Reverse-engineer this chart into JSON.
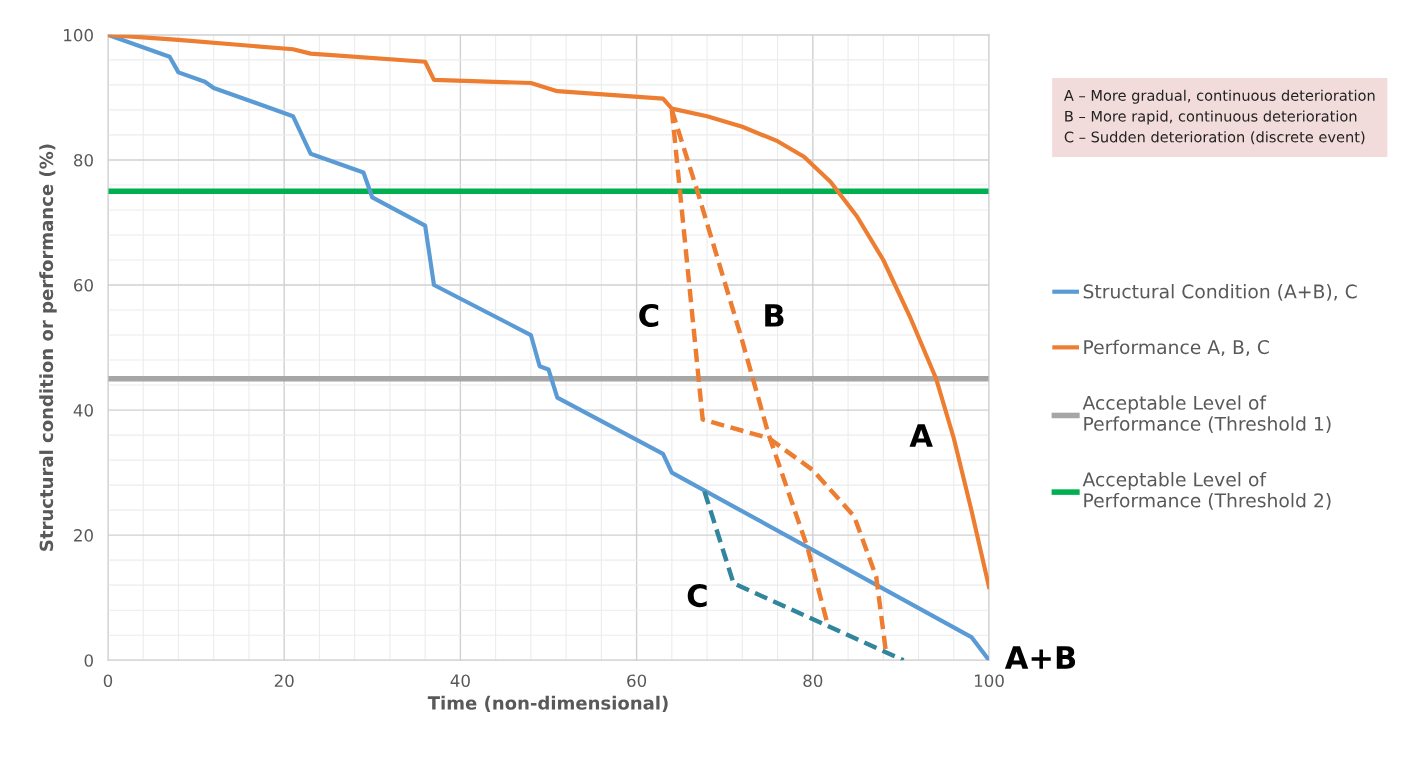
{
  "chart_data": {
    "type": "line",
    "xlabel": "Time (non-dimensional)",
    "ylabel": "Structural condition or performance (%)",
    "xlim": [
      0,
      100
    ],
    "ylim": [
      0,
      100
    ],
    "xticks": [
      0,
      20,
      40,
      60,
      80,
      100
    ],
    "yticks": [
      0,
      20,
      40,
      60,
      80,
      100
    ],
    "grid": true,
    "legend": "right",
    "line_style": "solid",
    "marker": "none",
    "series": [
      {
        "name": "Structural Condition (A+B), C",
        "color": "#5b9bd5",
        "x": [
          0,
          7,
          8,
          11,
          12,
          21,
          23,
          29,
          30,
          36,
          37,
          48,
          49,
          50,
          51,
          63,
          64,
          98,
          100
        ],
        "values": [
          100,
          96.5,
          94,
          92.5,
          91.5,
          87,
          81,
          78,
          74,
          69.5,
          60,
          52,
          47,
          46.5,
          42,
          33,
          30,
          3.7,
          0
        ]
      },
      {
        "name": "Performance A, B, C",
        "color": "#ed7d31",
        "x": [
          0,
          8,
          21,
          23,
          36,
          37,
          48,
          51,
          63,
          64,
          68,
          72,
          76,
          79,
          82,
          85,
          88,
          91,
          94,
          96,
          98,
          100
        ],
        "values": [
          100,
          99.2,
          97.7,
          97,
          95.7,
          92.8,
          92.3,
          91,
          89.8,
          88.2,
          87,
          85.3,
          83,
          80.5,
          76.5,
          71,
          64,
          55,
          45,
          35.5,
          24,
          11.7
        ]
      },
      {
        "color": "#ed7d31",
        "line_style": "dashed",
        "x": [
          64,
          66.9,
          71.8,
          75,
          79.4,
          81.7
        ],
        "values": [
          88,
          75,
          52,
          36,
          18,
          5.6
        ]
      },
      {
        "color": "#ed7d31",
        "line_style": "dashed",
        "x": [
          64,
          67.5,
          75,
          80,
          84.7,
          87.2,
          88.3
        ],
        "values": [
          88,
          38.5,
          35.5,
          30.4,
          23,
          13.3,
          1.3
        ]
      },
      {
        "color": "#31859c",
        "line_style": "dashed",
        "x": [
          67.7,
          71,
          90.3
        ],
        "values": [
          27,
          12.3,
          0
        ]
      }
    ],
    "ref_lines": [
      {
        "axis": "y",
        "value": 45,
        "label": "Acceptable Level of Performance (Threshold 1)",
        "color": "#a6a6a6"
      },
      {
        "axis": "y",
        "value": 75,
        "label": "Acceptable Level of Performance (Threshold 2)",
        "color": "#00b050"
      }
    ],
    "annotations": [
      "A – More gradual, continuous deterioration",
      "B – More rapid, continuous deterioration",
      "C – Sudden deterioration (discrete event)",
      "C",
      "B",
      "A",
      "C",
      "A+B"
    ]
  }
}
